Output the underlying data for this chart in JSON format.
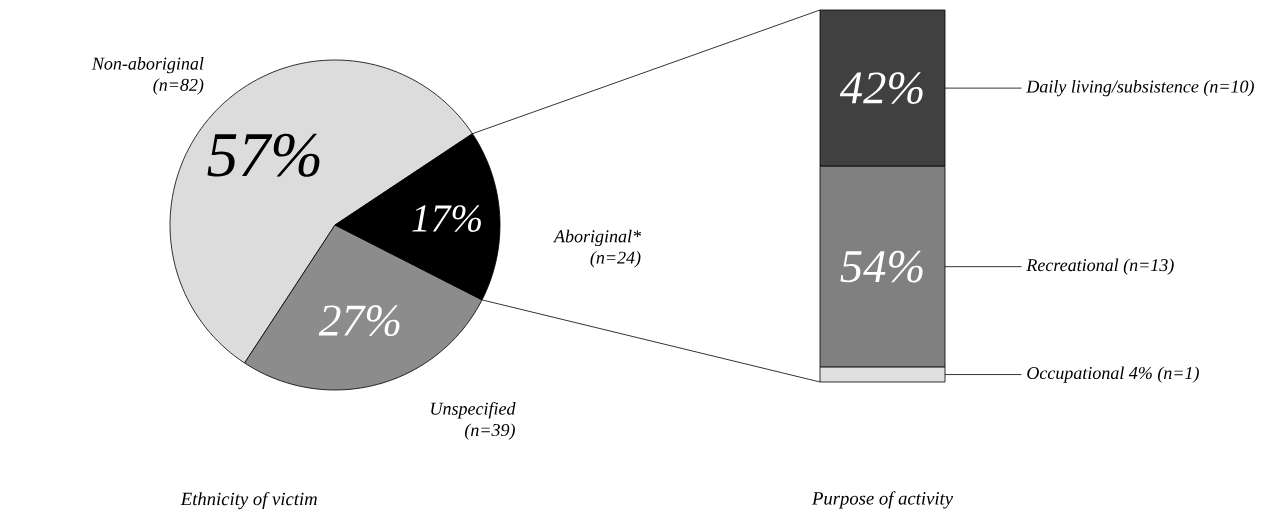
{
  "chart_data": [
    {
      "type": "pie",
      "title": "Ethnicity of victim",
      "categories": [
        "Aboriginal* (n=24)",
        "Non-aboriginal (n=82)",
        "Unspecified (n=39)"
      ],
      "values": [
        17,
        57,
        27
      ],
      "value_labels": [
        "17%",
        "57%",
        "27%"
      ],
      "colors": [
        "#000000",
        "#dcdcdc",
        "#8c8c8c"
      ]
    },
    {
      "type": "bar",
      "stacked": true,
      "legend": "right",
      "title": "Purpose of activity",
      "categories": [
        null
      ],
      "series": [
        {
          "name": "Occupational 4% (n=1)",
          "color": "#e0e0e0",
          "values": [
            4
          ],
          "value_labels": [
            null
          ]
        },
        {
          "name": "Recreational (n=13)",
          "color": "#808080",
          "values": [
            54
          ],
          "value_labels": [
            "54%"
          ]
        },
        {
          "name": "Daily living/subsistence (n=10)",
          "color": "#404040",
          "values": [
            42
          ],
          "value_labels": [
            "42%"
          ]
        }
      ]
    }
  ]
}
